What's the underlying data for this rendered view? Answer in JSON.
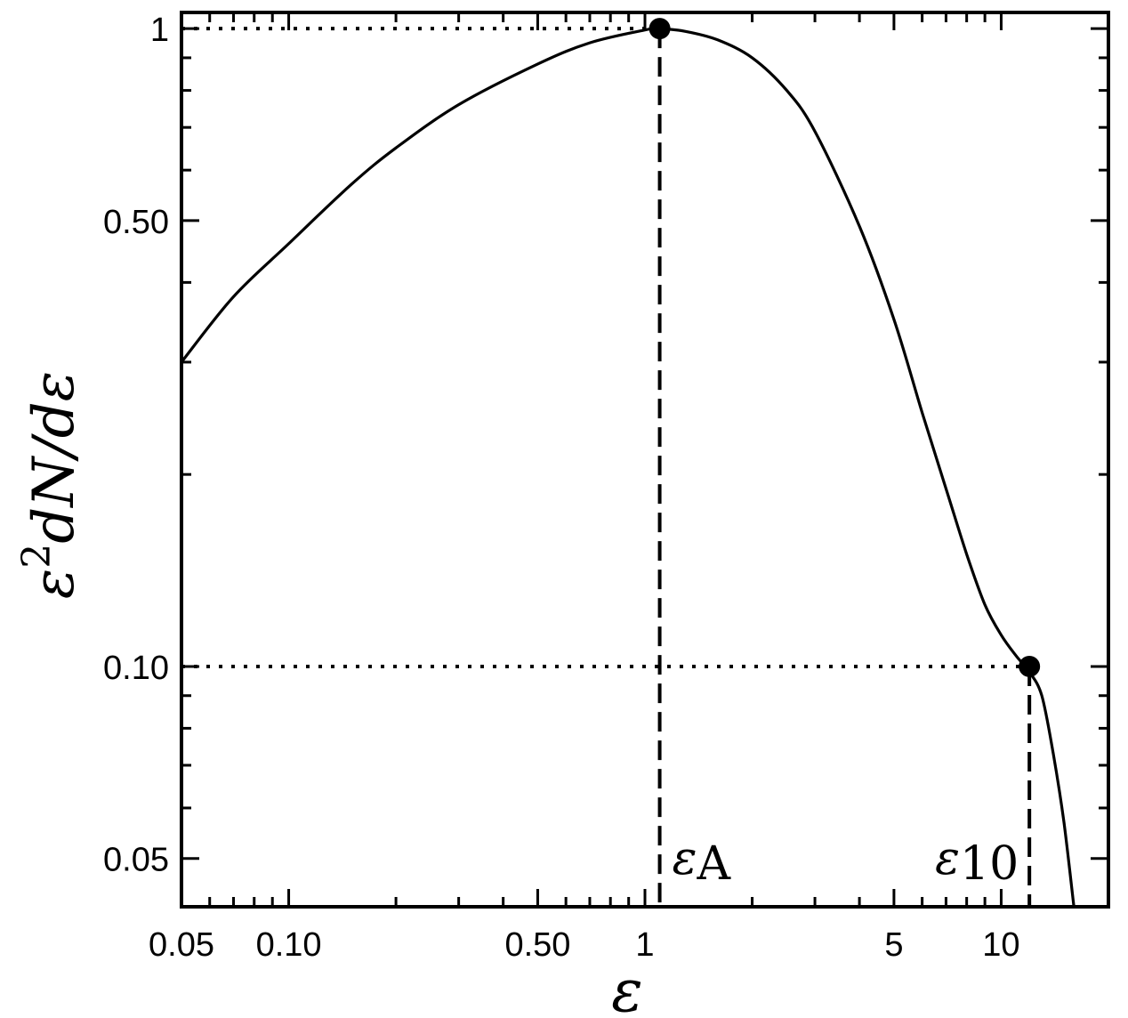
{
  "chart_data": {
    "type": "line",
    "x_scale": "log",
    "y_scale": "log",
    "xlim": [
      0.05,
      20
    ],
    "ylim": [
      0.042,
      1.06
    ],
    "xlabel": "ε",
    "ylabel_base": "ε",
    "ylabel_sup": "2",
    "ylabel_rest": "dN/dε",
    "x_ticks": [
      {
        "value": 0.05,
        "label": "0.05"
      },
      {
        "value": 0.1,
        "label": "0.10"
      },
      {
        "value": 0.5,
        "label": "0.50"
      },
      {
        "value": 1,
        "label": "1"
      },
      {
        "value": 5,
        "label": "5"
      },
      {
        "value": 10,
        "label": "10"
      }
    ],
    "y_ticks": [
      {
        "value": 0.05,
        "label": "0.05"
      },
      {
        "value": 0.1,
        "label": "0.10"
      },
      {
        "value": 0.5,
        "label": "0.50"
      },
      {
        "value": 1,
        "label": "1"
      }
    ],
    "series": [
      {
        "color": "#000000",
        "x": [
          0.05,
          0.07,
          0.1,
          0.15,
          0.2,
          0.3,
          0.5,
          0.7,
          1.0,
          1.1,
          1.3,
          1.6,
          2.0,
          2.5,
          3.0,
          4.0,
          5.0,
          6.0,
          7.0,
          8.0,
          9.0,
          10.0,
          11.0,
          12.0,
          13.0,
          14.0,
          15.0,
          16.0
        ],
        "y": [
          0.3,
          0.38,
          0.46,
          0.57,
          0.65,
          0.76,
          0.88,
          0.95,
          0.995,
          1.0,
          0.99,
          0.96,
          0.9,
          0.8,
          0.69,
          0.49,
          0.35,
          0.25,
          0.19,
          0.15,
          0.125,
          0.112,
          0.104,
          0.098,
          0.09,
          0.073,
          0.057,
          0.042
        ]
      }
    ],
    "highlight_points": [
      {
        "x": 1.1,
        "y": 1.0,
        "label_base": "ε",
        "label_sub": "A"
      },
      {
        "x": 12.0,
        "y": 0.1,
        "label_base": "ε",
        "label_sub": "10"
      }
    ],
    "grid": false,
    "frame": true
  }
}
